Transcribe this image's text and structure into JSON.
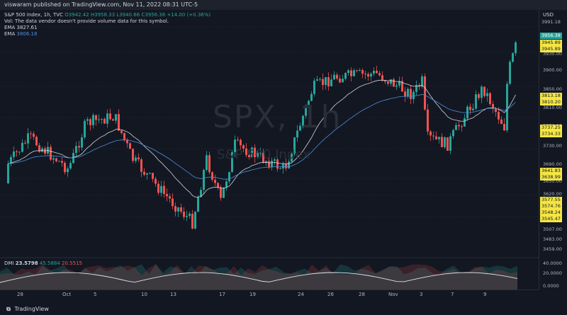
{
  "header": {
    "published": "viswaram published on TradingView.com, Nov 11, 2022 08:31 UTC-5"
  },
  "legend": {
    "symbol": "S&P 500 Index, 1h, TVC",
    "ohlc": "O3942.42 H3958.33 L3940.66 C3956.38 +14.00 (+0.36%)",
    "vol_note": "Vol: The data vendor doesn't provide volume data for this symbol.",
    "ema1_label": "EMA",
    "ema1_value": "3827.61",
    "ema2_label": "EMA",
    "ema2_value": "3806.18"
  },
  "watermark": {
    "ticker": "SPX, 1h",
    "name": "S&P 500 Index"
  },
  "dmi": {
    "label": "DMI",
    "adx": "23.5798",
    "plus": "45.5884",
    "minus": "20.5515"
  },
  "price_axis": {
    "currency": "USD",
    "ticks": [
      "3930.00",
      "3900.00",
      "3850.00",
      "3810.00",
      "3770.00",
      "3730.00",
      "3690.00",
      "3650.00",
      "3620.00",
      "3590.00",
      "3550.00",
      "3507.00",
      "3483.00",
      "3459.00"
    ],
    "tags": [
      "3991.18",
      "3956.38",
      "3945.89",
      "3945.89",
      "3813.18",
      "3810.20",
      "3737.25",
      "3734.33",
      "3641.83",
      "3638.99",
      "3577.55",
      "3574.76",
      "3548.24",
      "3545.47"
    ],
    "dmi_ticks": [
      "40.0000",
      "20.0000",
      "0.0000"
    ]
  },
  "time_axis": [
    "28",
    "Oct",
    "5",
    "10",
    "13",
    "17",
    "19",
    "24",
    "26",
    "28",
    "Nov",
    "3",
    "7",
    "9"
  ],
  "footer": {
    "brand": "TradingView"
  },
  "colors": {
    "up": "#26a69a",
    "down": "#ef5350",
    "ema_fast": "#d1d4dc",
    "ema_slow": "#4c8ed9",
    "tag": "#f5e642"
  }
}
